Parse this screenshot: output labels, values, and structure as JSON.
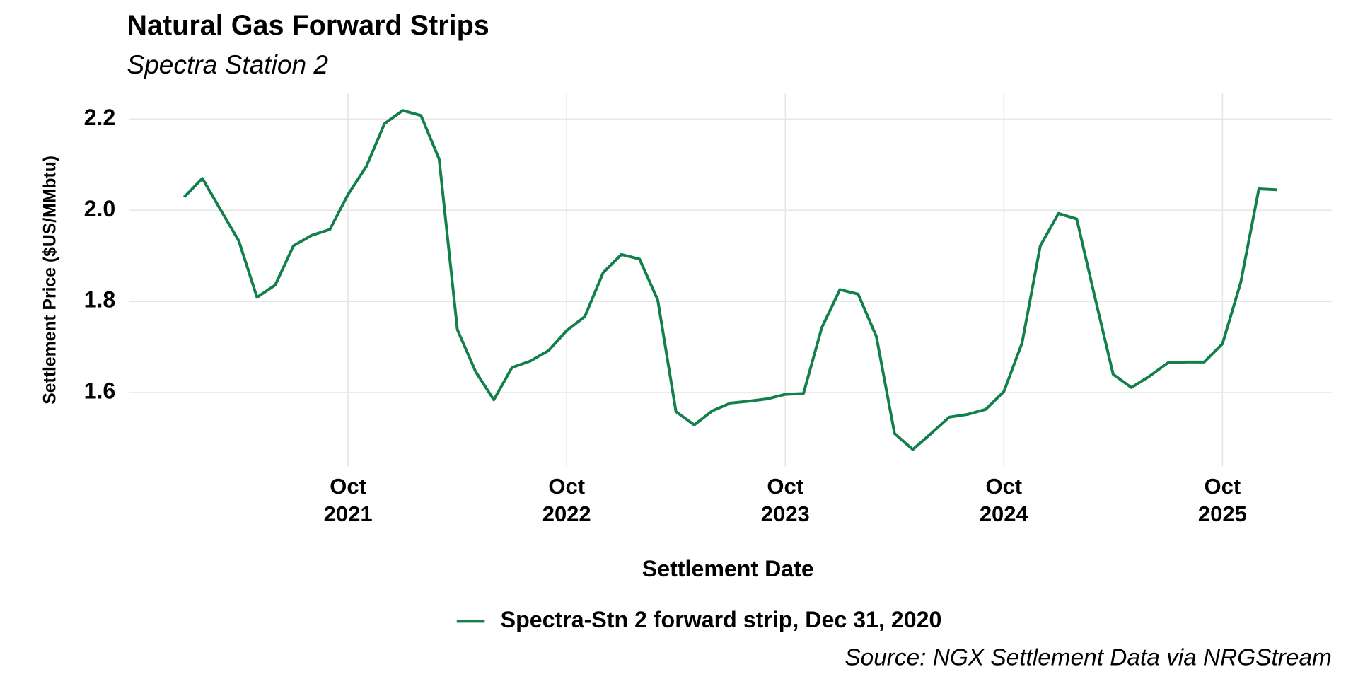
{
  "chart_data": {
    "type": "line",
    "title": "Natural Gas Forward Strips",
    "subtitle": "Spectra Station 2",
    "x_label": "Settlement Date",
    "y_label": "Settlement Price ($US/MMbtu)",
    "source": "Source: NGX Settlement Data via NRGStream",
    "x": [
      "2021-01",
      "2021-02",
      "2021-03",
      "2021-04",
      "2021-05",
      "2021-06",
      "2021-07",
      "2021-08",
      "2021-09",
      "2021-10",
      "2021-11",
      "2021-12",
      "2022-01",
      "2022-02",
      "2022-03",
      "2022-04",
      "2022-05",
      "2022-06",
      "2022-07",
      "2022-08",
      "2022-09",
      "2022-10",
      "2022-11",
      "2022-12",
      "2023-01",
      "2023-02",
      "2023-03",
      "2023-04",
      "2023-05",
      "2023-06",
      "2023-07",
      "2023-08",
      "2023-09",
      "2023-10",
      "2023-11",
      "2023-12",
      "2024-01",
      "2024-02",
      "2024-03",
      "2024-04",
      "2024-05",
      "2024-06",
      "2024-07",
      "2024-08",
      "2024-09",
      "2024-10",
      "2024-11",
      "2024-12",
      "2025-01",
      "2025-02",
      "2025-03",
      "2025-04",
      "2025-05",
      "2025-06",
      "2025-07",
      "2025-08",
      "2025-09",
      "2025-10",
      "2025-11",
      "2025-12",
      "2026-01"
    ],
    "series": [
      {
        "name": "Spectra-Stn 2 forward strip, Dec 31, 2020",
        "color": "#12804a",
        "values": [
          2.029,
          2.07,
          2.001,
          1.933,
          1.809,
          1.836,
          1.922,
          1.945,
          1.958,
          2.035,
          2.096,
          2.19,
          2.219,
          2.208,
          2.112,
          1.738,
          1.646,
          1.584,
          1.655,
          1.669,
          1.692,
          1.736,
          1.767,
          1.863,
          1.903,
          1.893,
          1.803,
          1.558,
          1.529,
          1.56,
          1.577,
          1.581,
          1.586,
          1.596,
          1.598,
          1.742,
          1.826,
          1.816,
          1.723,
          1.51,
          1.475,
          1.51,
          1.546,
          1.552,
          1.563,
          1.602,
          1.709,
          1.922,
          1.993,
          1.981,
          1.809,
          1.64,
          1.611,
          1.636,
          1.665,
          1.667,
          1.667,
          1.707,
          1.841,
          2.047,
          2.045
        ]
      }
    ],
    "xlim": [
      "2020-10",
      "2026-04"
    ],
    "xticks": [
      {
        "value": "2021-10",
        "label": "Oct\n2021"
      },
      {
        "value": "2022-10",
        "label": "Oct\n2022"
      },
      {
        "value": "2023-10",
        "label": "Oct\n2023"
      },
      {
        "value": "2024-10",
        "label": "Oct\n2024"
      },
      {
        "value": "2025-10",
        "label": "Oct\n2025"
      }
    ],
    "ylim": [
      1.438,
      2.256
    ],
    "yticks": [
      {
        "value": 1.6,
        "label": "1.6"
      },
      {
        "value": 1.8,
        "label": "1.8"
      },
      {
        "value": 2.0,
        "label": "2.0"
      },
      {
        "value": 2.2,
        "label": "2.2"
      }
    ],
    "grid": true,
    "legend": "bottom"
  }
}
